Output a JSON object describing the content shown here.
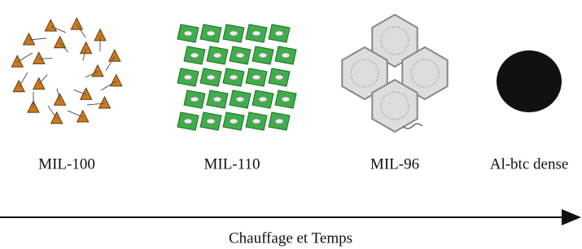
{
  "nodes": [
    {
      "label": "MIL-100"
    },
    {
      "label": "MIL-110"
    },
    {
      "label": "MIL-96"
    },
    {
      "label": "Al-btc dense"
    }
  ],
  "arrow": {
    "label": "Chauffage et Temps"
  }
}
